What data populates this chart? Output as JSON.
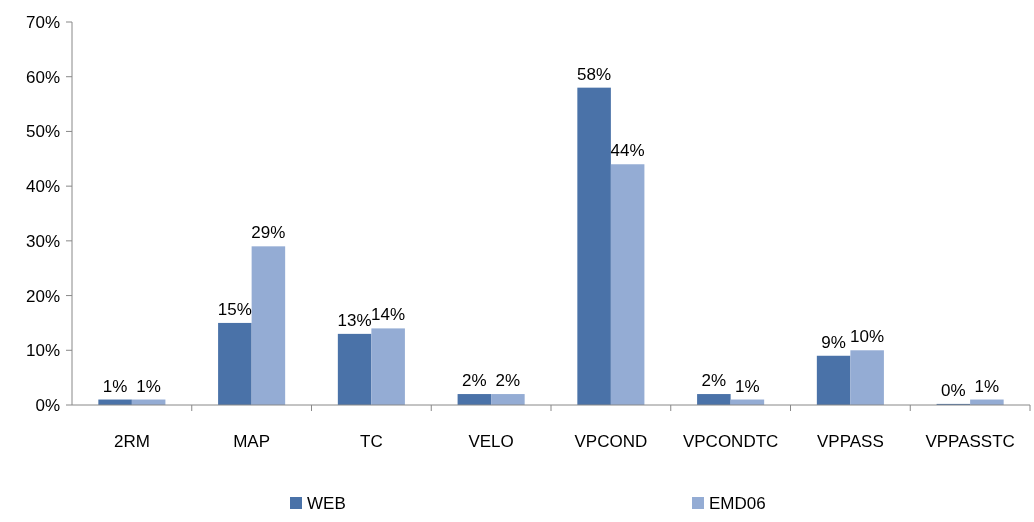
{
  "chart_data": {
    "type": "bar",
    "categories": [
      "2RM",
      "MAP",
      "TC",
      "VELO",
      "VPCOND",
      "VPCONDTC",
      "VPPASS",
      "VPPASSTC"
    ],
    "series": [
      {
        "name": "WEB",
        "color": "#4a72a8",
        "values": [
          1,
          15,
          13,
          2,
          58,
          2,
          9,
          0.2
        ],
        "value_labels": [
          "1%",
          "15%",
          "13%",
          "2%",
          "58%",
          "2%",
          "9%",
          "0%"
        ]
      },
      {
        "name": "EMD06",
        "color": "#94acd4",
        "values": [
          1,
          29,
          14,
          2,
          44,
          1,
          10,
          1
        ],
        "value_labels": [
          "1%",
          "29%",
          "14%",
          "2%",
          "44%",
          "1%",
          "10%",
          "1%"
        ]
      }
    ],
    "ylim": [
      0,
      70
    ],
    "yticks": [
      {
        "value": 0,
        "label": "0%"
      },
      {
        "value": 10,
        "label": "10%"
      },
      {
        "value": 20,
        "label": "20%"
      },
      {
        "value": 30,
        "label": "30%"
      },
      {
        "value": 40,
        "label": "40%"
      },
      {
        "value": 50,
        "label": "50%"
      },
      {
        "value": 60,
        "label": "60%"
      },
      {
        "value": 70,
        "label": "70%"
      }
    ],
    "grid": false,
    "legend": "bottom"
  }
}
